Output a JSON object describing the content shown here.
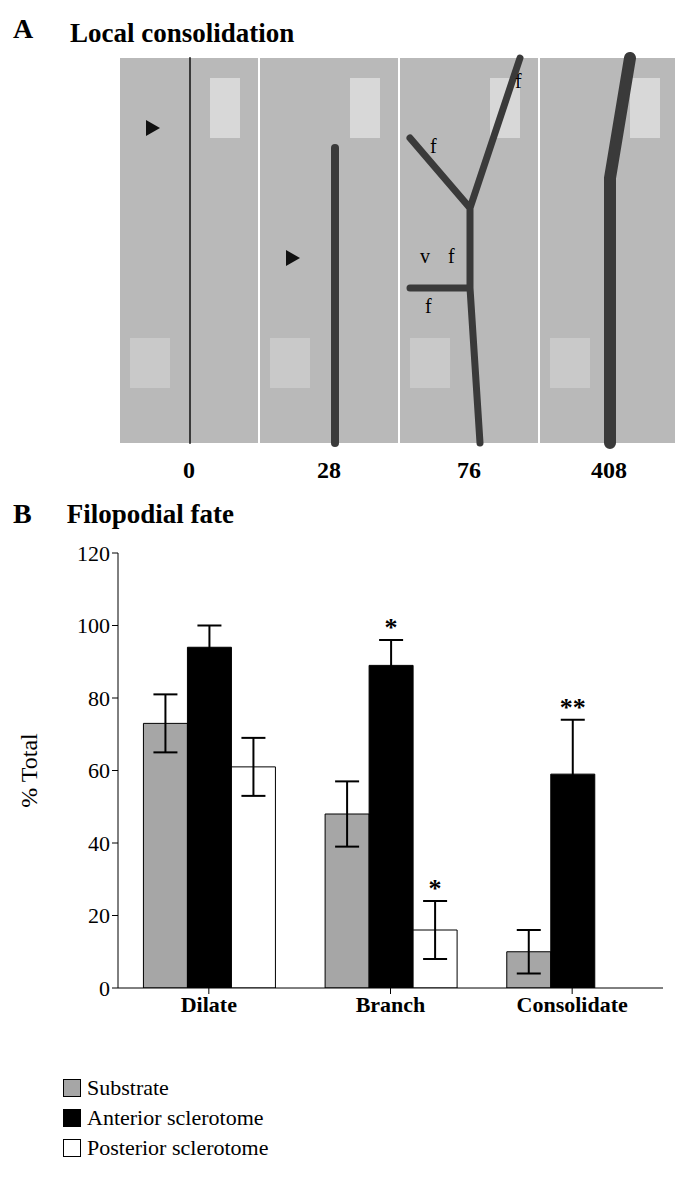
{
  "panel_a": {
    "label": "A",
    "title": "Local consolidation",
    "frames": [
      {
        "time": 0,
        "labels": []
      },
      {
        "time": 28,
        "labels": []
      },
      {
        "time": 76,
        "labels": [
          "f",
          "f",
          "v",
          "f",
          "f"
        ]
      },
      {
        "time": 408,
        "labels": []
      }
    ]
  },
  "chart_data": {
    "type": "bar",
    "label": "B",
    "title": "Filopodial fate",
    "y_label": "% Total",
    "categories": [
      "Dilate",
      "Branch",
      "Consolidate"
    ],
    "ylim": [
      0,
      120
    ],
    "yticks": [
      0,
      20,
      40,
      60,
      80,
      100,
      120
    ],
    "grid": false,
    "legend": "bottom-left",
    "series": [
      {
        "name": "Substrate",
        "color": "#a6a6a6",
        "values": [
          73,
          48,
          10
        ],
        "errors": [
          8,
          9,
          6
        ],
        "significance": [
          null,
          null,
          null
        ]
      },
      {
        "name": "Anterior sclerotome",
        "color": "#000000",
        "values": [
          94,
          89,
          59
        ],
        "errors": [
          6,
          7,
          15
        ],
        "significance": [
          null,
          "*",
          "**"
        ]
      },
      {
        "name": "Posterior sclerotome",
        "color": "#ffffff",
        "values": [
          61,
          16,
          0
        ],
        "errors": [
          8,
          8,
          null
        ],
        "significance": [
          null,
          "*",
          null
        ]
      }
    ]
  }
}
